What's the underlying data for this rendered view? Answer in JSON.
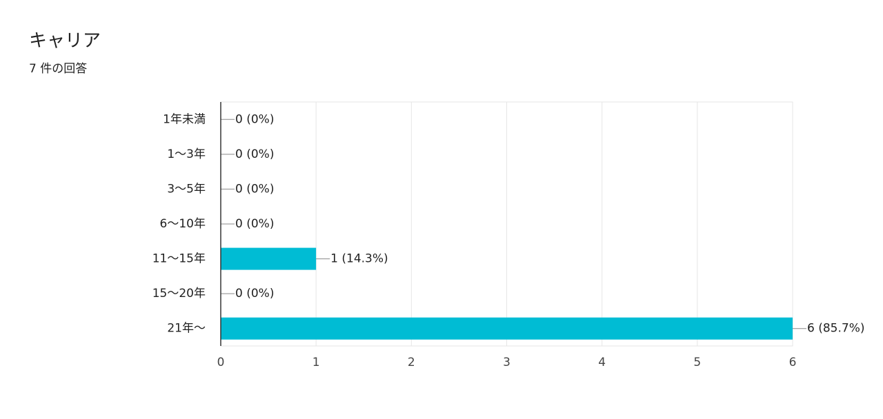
{
  "chart_data": {
    "type": "bar",
    "horizontal": true,
    "title": "キャリア",
    "subtitle": "7 件の回答",
    "categories": [
      "1年未満",
      "1〜3年",
      "3〜5年",
      "6〜10年",
      "11〜15年",
      "15〜20年",
      "21年〜"
    ],
    "values": [
      0,
      0,
      0,
      0,
      1,
      0,
      6
    ],
    "value_labels": [
      "0 (0%)",
      "0 (0%)",
      "0 (0%)",
      "0 (0%)",
      "1 (14.3%)",
      "0 (0%)",
      "6 (85.7%)"
    ],
    "color": "#00bcd4",
    "xlim": [
      0,
      6
    ],
    "xticks": [
      0,
      1,
      2,
      3,
      4,
      5,
      6
    ],
    "grid": true
  }
}
